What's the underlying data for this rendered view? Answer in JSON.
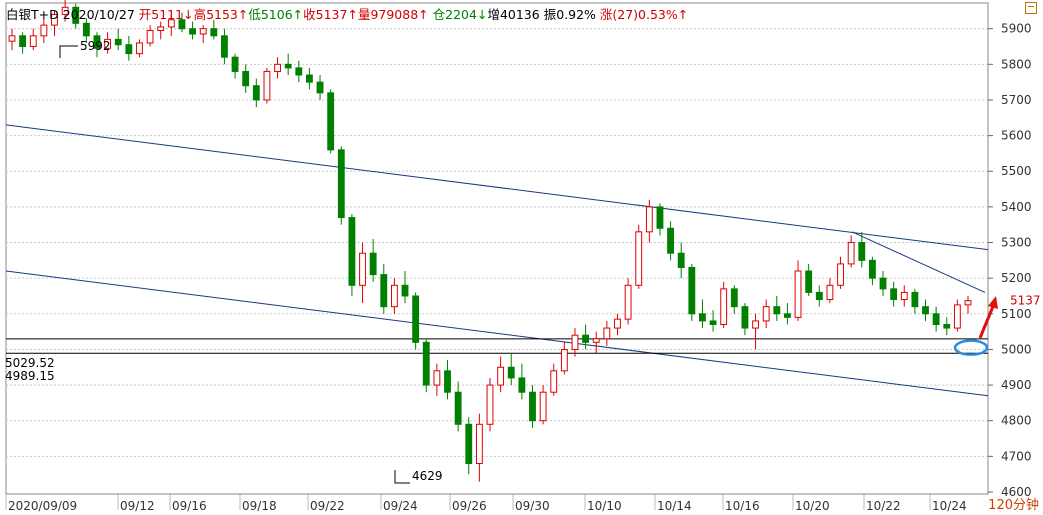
{
  "header": {
    "name": "白银T+D",
    "date": "2020/10/27",
    "items": [
      {
        "text": "开5111↓",
        "color": "red"
      },
      {
        "text": "高5153↑",
        "color": "red"
      },
      {
        "text": "低5106↑",
        "color": "green"
      },
      {
        "text": "收5137↑",
        "color": "red"
      },
      {
        "text": "量979088↑",
        "color": "red"
      },
      {
        "text": "仓2204↓",
        "color": "green"
      },
      {
        "text": "增40136",
        "color": "black"
      },
      {
        "text": "振0.92%",
        "color": "black"
      },
      {
        "text": "涨(27)0.53%↑",
        "color": "red"
      }
    ]
  },
  "period_label": "120分钟",
  "colors": {
    "up": "#e00000",
    "down": "#008000",
    "line": "#1a3a80",
    "grid": "#c9c9c9"
  },
  "chart_data": {
    "type": "candlestick",
    "ylim": [
      4600,
      6000
    ],
    "y_ticks": [
      4600,
      4700,
      4800,
      4900,
      5000,
      5100,
      5200,
      5300,
      5400,
      5500,
      5600,
      5700,
      5800,
      5900
    ],
    "x_ticks": [
      "2020/09/09",
      "09/12",
      "09/16",
      "09/18",
      "09/22",
      "09/24",
      "09/26",
      "09/30",
      "10/10",
      "10/14",
      "10/16",
      "10/20",
      "10/22",
      "10/24"
    ],
    "annotations": {
      "high": "5992",
      "low": "4629",
      "last": "5137"
    },
    "levels": [
      {
        "label": "5029.52",
        "value": 5029.52
      },
      {
        "label": "4989.15",
        "value": 4989.15
      }
    ],
    "candles": [
      [
        5865,
        5900,
        5840,
        5880
      ],
      [
        5880,
        5890,
        5830,
        5850
      ],
      [
        5850,
        5900,
        5840,
        5880
      ],
      [
        5880,
        5930,
        5860,
        5910
      ],
      [
        5910,
        5950,
        5880,
        5940
      ],
      [
        5940,
        5992,
        5920,
        5960
      ],
      [
        5960,
        5970,
        5900,
        5915
      ],
      [
        5915,
        5930,
        5860,
        5880
      ],
      [
        5880,
        5890,
        5820,
        5845
      ],
      [
        5845,
        5890,
        5830,
        5870
      ],
      [
        5870,
        5900,
        5840,
        5855
      ],
      [
        5855,
        5880,
        5810,
        5830
      ],
      [
        5830,
        5870,
        5820,
        5860
      ],
      [
        5860,
        5910,
        5850,
        5895
      ],
      [
        5895,
        5920,
        5870,
        5905
      ],
      [
        5905,
        5940,
        5880,
        5925
      ],
      [
        5925,
        5945,
        5890,
        5900
      ],
      [
        5900,
        5920,
        5870,
        5885
      ],
      [
        5885,
        5910,
        5860,
        5900
      ],
      [
        5900,
        5925,
        5870,
        5880
      ],
      [
        5880,
        5900,
        5800,
        5820
      ],
      [
        5820,
        5830,
        5760,
        5780
      ],
      [
        5780,
        5800,
        5720,
        5740
      ],
      [
        5740,
        5760,
        5680,
        5700
      ],
      [
        5700,
        5790,
        5690,
        5780
      ],
      [
        5780,
        5820,
        5760,
        5800
      ],
      [
        5800,
        5830,
        5770,
        5790
      ],
      [
        5790,
        5810,
        5750,
        5770
      ],
      [
        5770,
        5790,
        5730,
        5750
      ],
      [
        5750,
        5770,
        5700,
        5720
      ],
      [
        5720,
        5730,
        5550,
        5560
      ],
      [
        5560,
        5570,
        5350,
        5370
      ],
      [
        5370,
        5380,
        5150,
        5180
      ],
      [
        5180,
        5300,
        5130,
        5270
      ],
      [
        5270,
        5310,
        5190,
        5210
      ],
      [
        5210,
        5240,
        5100,
        5120
      ],
      [
        5120,
        5200,
        5100,
        5180
      ],
      [
        5180,
        5220,
        5130,
        5150
      ],
      [
        5150,
        5160,
        5000,
        5020
      ],
      [
        5020,
        5030,
        4880,
        4900
      ],
      [
        4900,
        4960,
        4870,
        4940
      ],
      [
        4940,
        4970,
        4860,
        4880
      ],
      [
        4880,
        4910,
        4770,
        4790
      ],
      [
        4790,
        4810,
        4650,
        4680
      ],
      [
        4680,
        4820,
        4629,
        4790
      ],
      [
        4790,
        4920,
        4770,
        4900
      ],
      [
        4900,
        4980,
        4880,
        4950
      ],
      [
        4950,
        4990,
        4900,
        4920
      ],
      [
        4920,
        4960,
        4860,
        4880
      ],
      [
        4880,
        4900,
        4780,
        4800
      ],
      [
        4800,
        4900,
        4790,
        4880
      ],
      [
        4880,
        4960,
        4870,
        4940
      ],
      [
        4940,
        5020,
        4930,
        5000
      ],
      [
        5000,
        5060,
        4980,
        5040
      ],
      [
        5040,
        5070,
        5000,
        5020
      ],
      [
        5020,
        5050,
        4990,
        5030
      ],
      [
        5030,
        5080,
        5010,
        5060
      ],
      [
        5060,
        5100,
        5040,
        5085
      ],
      [
        5085,
        5200,
        5070,
        5180
      ],
      [
        5180,
        5350,
        5170,
        5330
      ],
      [
        5330,
        5420,
        5300,
        5400
      ],
      [
        5400,
        5410,
        5320,
        5340
      ],
      [
        5340,
        5360,
        5250,
        5270
      ],
      [
        5270,
        5300,
        5200,
        5230
      ],
      [
        5230,
        5240,
        5080,
        5100
      ],
      [
        5100,
        5140,
        5060,
        5080
      ],
      [
        5080,
        5110,
        5050,
        5070
      ],
      [
        5070,
        5190,
        5060,
        5170
      ],
      [
        5170,
        5180,
        5100,
        5120
      ],
      [
        5120,
        5130,
        5040,
        5060
      ],
      [
        5060,
        5100,
        5000,
        5080
      ],
      [
        5080,
        5140,
        5060,
        5120
      ],
      [
        5120,
        5150,
        5080,
        5100
      ],
      [
        5100,
        5130,
        5070,
        5090
      ],
      [
        5090,
        5250,
        5080,
        5220
      ],
      [
        5220,
        5240,
        5150,
        5160
      ],
      [
        5160,
        5180,
        5120,
        5140
      ],
      [
        5140,
        5200,
        5130,
        5180
      ],
      [
        5180,
        5260,
        5170,
        5240
      ],
      [
        5240,
        5320,
        5230,
        5300
      ],
      [
        5300,
        5330,
        5230,
        5250
      ],
      [
        5250,
        5260,
        5180,
        5200
      ],
      [
        5200,
        5220,
        5150,
        5170
      ],
      [
        5170,
        5190,
        5120,
        5140
      ],
      [
        5140,
        5180,
        5120,
        5160
      ],
      [
        5160,
        5170,
        5100,
        5120
      ],
      [
        5120,
        5140,
        5080,
        5100
      ],
      [
        5100,
        5120,
        5050,
        5070
      ],
      [
        5070,
        5090,
        5040,
        5060
      ],
      [
        5060,
        5140,
        5050,
        5125
      ],
      [
        5125,
        5150,
        5100,
        5137
      ]
    ]
  }
}
